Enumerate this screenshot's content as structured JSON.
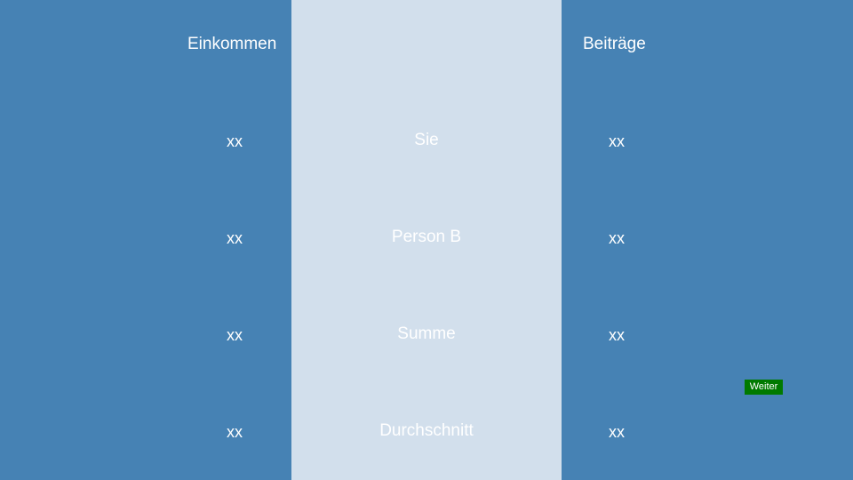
{
  "headers": {
    "income": "Einkommen",
    "contributions": "Beiträge"
  },
  "rows": [
    {
      "label": "Sie",
      "income": "xx",
      "contribution": "xx"
    },
    {
      "label": "Person B",
      "income": "xx",
      "contribution": "xx"
    },
    {
      "label": "Summe",
      "income": "xx",
      "contribution": "xx"
    },
    {
      "label": "Durchschnitt",
      "income": "xx",
      "contribution": "xx"
    }
  ],
  "next_button": {
    "label": "Weiter"
  },
  "colors": {
    "background": "#4682b4",
    "center_panel": "#d2dfec",
    "button": "#007a00",
    "text": "#ffffff"
  }
}
